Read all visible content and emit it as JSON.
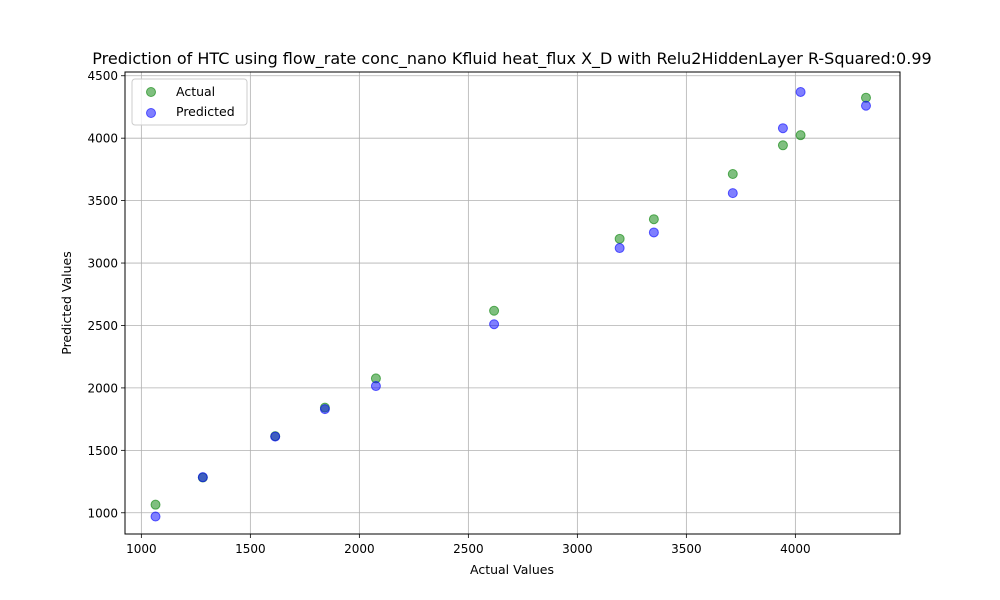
{
  "chart_data": {
    "type": "scatter",
    "title": "Prediction of HTC using flow_rate conc_nano Kfluid heat_flux X_D with Relu2HiddenLayer  R-Squared:0.99",
    "xlabel": "Actual Values",
    "ylabel": "Predicted Values",
    "xlim": [
      925,
      4480
    ],
    "ylim": [
      830,
      4530
    ],
    "xticks": [
      1000,
      1500,
      2000,
      2500,
      3000,
      3500,
      4000
    ],
    "yticks": [
      1000,
      1500,
      2000,
      2500,
      3000,
      3500,
      4000,
      4500
    ],
    "grid": true,
    "legend_position": "upper-left",
    "series": [
      {
        "name": "Actual",
        "color": "#008000",
        "points": [
          [
            1065,
            1065
          ],
          [
            1282,
            1282
          ],
          [
            1614,
            1614
          ],
          [
            1842,
            1842
          ],
          [
            2076,
            2076
          ],
          [
            2618,
            2618
          ],
          [
            3194,
            3194
          ],
          [
            3351,
            3351
          ],
          [
            3713,
            3713
          ],
          [
            3943,
            3943
          ],
          [
            4024,
            4024
          ],
          [
            4324,
            4324
          ]
        ]
      },
      {
        "name": "Predicted",
        "color": "#0000ff",
        "points": [
          [
            1065,
            970
          ],
          [
            1282,
            1285
          ],
          [
            1614,
            1610
          ],
          [
            1842,
            1830
          ],
          [
            2076,
            2015
          ],
          [
            2618,
            2510
          ],
          [
            3194,
            3120
          ],
          [
            3351,
            3245
          ],
          [
            3713,
            3560
          ],
          [
            3943,
            4080
          ],
          [
            4024,
            4370
          ],
          [
            4324,
            4260
          ]
        ]
      }
    ]
  }
}
